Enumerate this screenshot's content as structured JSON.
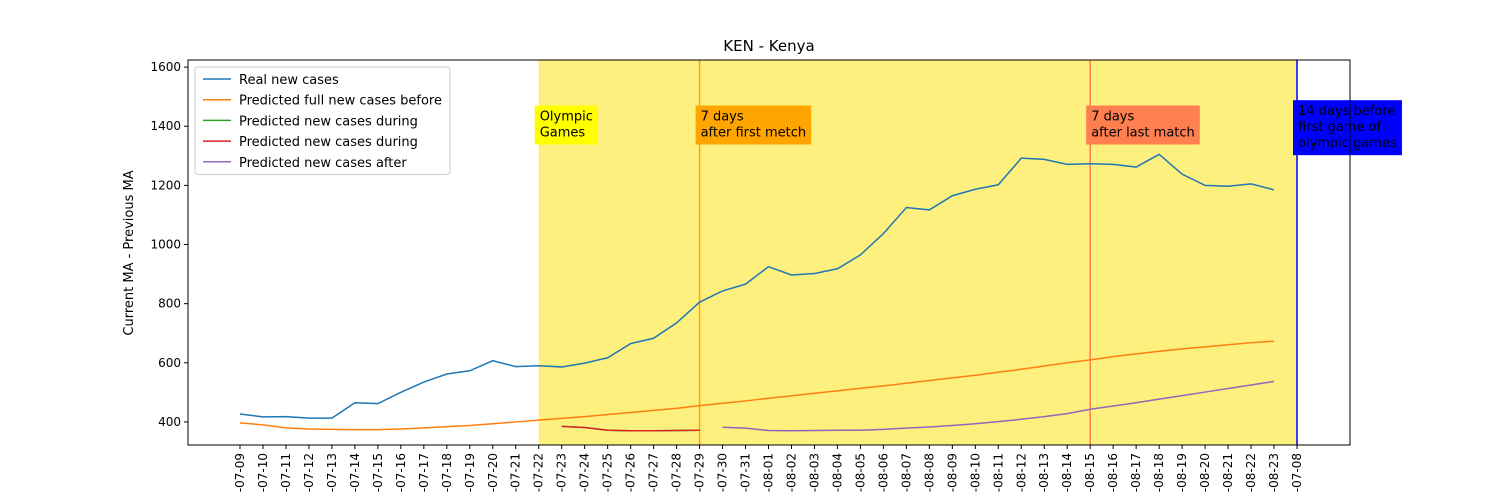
{
  "chart_data": {
    "type": "line",
    "title": "KEN - Kenya",
    "y_label": "Current MA - Previous MA",
    "categories": [
      "-07-09",
      "-07-10",
      "-07-11",
      "-07-12",
      "-07-13",
      "-07-14",
      "-07-15",
      "-07-16",
      "-07-17",
      "-07-18",
      "-07-19",
      "-07-20",
      "-07-21",
      "-07-22",
      "-07-23",
      "-07-24",
      "-07-25",
      "-07-26",
      "-07-27",
      "-07-28",
      "-07-29",
      "-07-30",
      "-07-31",
      "-08-01",
      "-08-02",
      "-08-03",
      "-08-04",
      "-08-05",
      "-08-06",
      "-08-07",
      "-08-08",
      "-08-09",
      "-08-10",
      "-08-11",
      "-08-12",
      "-08-13",
      "-08-14",
      "-08-15",
      "-08-16",
      "-08-17",
      "-08-18",
      "-08-19",
      "-08-20",
      "-08-21",
      "-08-22",
      "-08-23",
      "-07-08"
    ],
    "series": [
      {
        "name": "Real new cases",
        "color": "#1f77b4",
        "values": [
          427,
          417,
          418,
          413,
          413,
          465,
          462,
          500,
          535,
          562,
          573,
          607,
          587,
          590,
          586,
          599,
          617,
          665,
          683,
          735,
          805,
          843,
          866,
          925,
          897,
          902,
          918,
          965,
          1037,
          1125,
          1117,
          1165,
          1187,
          1202,
          1292,
          1288,
          1271,
          1273,
          1271,
          1262,
          1305,
          1238,
          1200,
          1197,
          1205,
          1185,
          null
        ]
      },
      {
        "name": "Predicted full new cases before",
        "color": "#ff7f0e",
        "values": [
          397,
          390,
          380,
          376,
          375,
          374,
          374,
          376,
          380,
          384,
          388,
          394,
          400,
          406,
          412,
          418,
          425,
          432,
          439,
          446,
          455,
          463,
          471,
          480,
          488,
          497,
          505,
          514,
          522,
          531,
          540,
          549,
          558,
          568,
          578,
          589,
          600,
          610,
          621,
          630,
          639,
          647,
          654,
          661,
          668,
          673,
          null
        ]
      },
      {
        "name": "Predicted new cases during",
        "color": "#2ca02c",
        "values": [
          null,
          null,
          null,
          null,
          null,
          null,
          null,
          null,
          null,
          null,
          null,
          null,
          null,
          null,
          385,
          381,
          372,
          370,
          370,
          371,
          372,
          null,
          null,
          null,
          null,
          null,
          null,
          null,
          null,
          null,
          null,
          null,
          null,
          null,
          null,
          null,
          null,
          null,
          null,
          null,
          null,
          null,
          null,
          null,
          null,
          null,
          null
        ]
      },
      {
        "name": "Predicted new cases during",
        "color": "#d62728",
        "values": [
          null,
          null,
          null,
          null,
          null,
          null,
          null,
          null,
          null,
          null,
          null,
          null,
          null,
          null,
          385,
          381,
          372,
          370,
          370,
          371,
          372,
          null,
          null,
          null,
          null,
          null,
          null,
          null,
          null,
          null,
          null,
          null,
          null,
          null,
          null,
          null,
          null,
          null,
          null,
          null,
          null,
          null,
          null,
          null,
          null,
          null,
          null
        ]
      },
      {
        "name": "Predicted new cases after",
        "color": "#9467bd",
        "values": [
          null,
          null,
          null,
          null,
          null,
          null,
          null,
          null,
          null,
          null,
          null,
          null,
          null,
          null,
          null,
          null,
          null,
          null,
          null,
          null,
          null,
          382,
          379,
          371,
          370,
          371,
          372,
          372,
          375,
          379,
          383,
          388,
          394,
          401,
          409,
          418,
          428,
          443,
          454,
          465,
          477,
          489,
          501,
          513,
          525,
          537,
          null
        ]
      }
    ],
    "ylim": [
      322,
      1624
    ],
    "yticks": [
      400,
      600,
      800,
      1000,
      1200,
      1400,
      1600
    ],
    "legend": "upper left",
    "shade": {
      "from": "-07-22",
      "to": "-07-08",
      "color": "#fdf07f"
    },
    "vlines": [
      {
        "x": "-07-29",
        "color": "#ffa500"
      },
      {
        "x": "-08-15",
        "color": "#ff7f50"
      },
      {
        "x": "-07-08",
        "color": "#0000ff"
      }
    ],
    "annotations": [
      {
        "x": "-07-22",
        "text": [
          "Olympic",
          "Games"
        ],
        "box": "#ffff00",
        "text_color": "#000000"
      },
      {
        "x": "-07-29",
        "text": [
          "7 days",
          "after first metch"
        ],
        "box": "#ffa500",
        "text_color": "#000000"
      },
      {
        "x": "-08-15",
        "text": [
          "7 days",
          "after last match"
        ],
        "box": "#ff7f50",
        "text_color": "#000000"
      },
      {
        "x": "-07-08",
        "text": [
          "14 days before",
          "first game of",
          "olympic games"
        ],
        "box": "#0000ff",
        "text_color": "#ffffff"
      }
    ]
  }
}
